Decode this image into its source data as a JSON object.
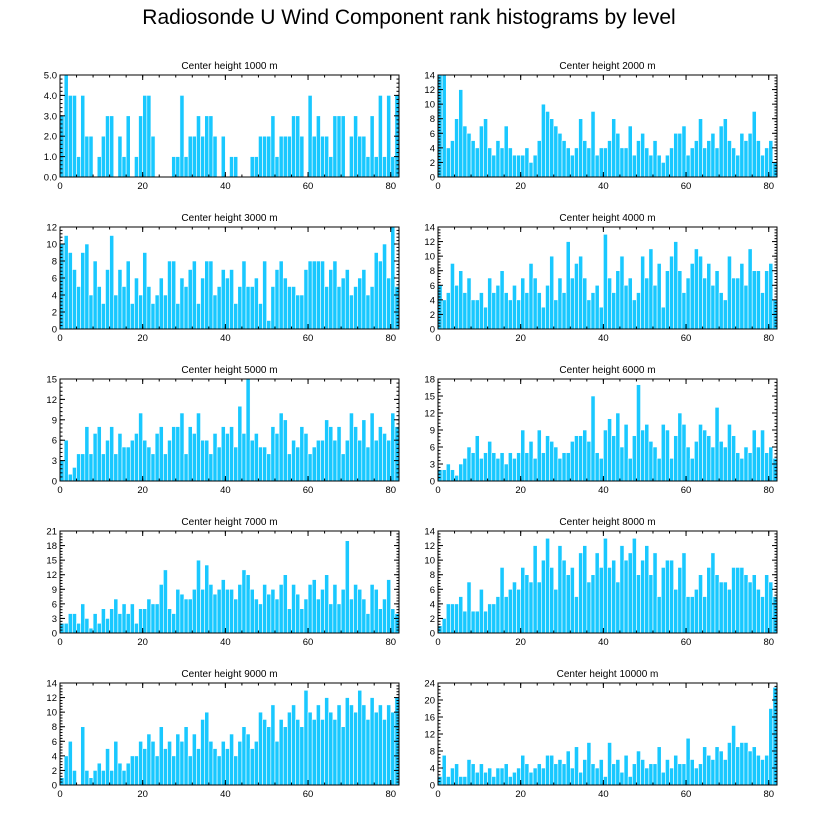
{
  "title": "Radiosonde U Wind Component rank histograms by level",
  "colors": {
    "bar": "#19c8ff",
    "axes": "#000000"
  },
  "chart_data": [
    {
      "type": "bar",
      "title": "Center height 1000 m",
      "xlim": [
        0,
        82
      ],
      "ylim": [
        0,
        5
      ],
      "xticks": [
        0,
        20,
        40,
        60,
        80
      ],
      "yticks": [
        0,
        1,
        2,
        3,
        4,
        5
      ],
      "ytick_labels": [
        "0.0",
        "1.0",
        "2.0",
        "3.0",
        "4.0",
        "5.0"
      ],
      "values": [
        3,
        5,
        4,
        4,
        1,
        4,
        2,
        2,
        0,
        1,
        2,
        3,
        3,
        0,
        2,
        1,
        3,
        0,
        1,
        3,
        4,
        4,
        2,
        0,
        0,
        0,
        0,
        1,
        1,
        4,
        1,
        2,
        2,
        3,
        2,
        3,
        3,
        2,
        0,
        2,
        0,
        1,
        1,
        0,
        0,
        0,
        1,
        1,
        2,
        2,
        2,
        3,
        1,
        2,
        2,
        2,
        3,
        3,
        2,
        0,
        4,
        2,
        3,
        2,
        2,
        1,
        3,
        3,
        3,
        0,
        2,
        3,
        2,
        2,
        1,
        3,
        1,
        4,
        1,
        4,
        1,
        4
      ]
    },
    {
      "type": "bar",
      "title": "Center height 2000 m",
      "xlim": [
        0,
        82
      ],
      "ylim": [
        0,
        14
      ],
      "xticks": [
        0,
        20,
        40,
        60,
        80
      ],
      "yticks": [
        0,
        2,
        4,
        6,
        8,
        10,
        12,
        14
      ],
      "ytick_labels": [
        "0",
        "2",
        "4",
        "6",
        "8",
        "10",
        "12",
        "14"
      ],
      "values": [
        14,
        14,
        4,
        5,
        8,
        12,
        7,
        6,
        5,
        4,
        7,
        8,
        4,
        3,
        5,
        4,
        7,
        4,
        3,
        3,
        3,
        4,
        2,
        3,
        5,
        10,
        9,
        8,
        7,
        6,
        5,
        4,
        3,
        4,
        8,
        5,
        4,
        9,
        3,
        4,
        4,
        5,
        8,
        6,
        4,
        4,
        7,
        3,
        5,
        6,
        4,
        3,
        5,
        3,
        2,
        3,
        4,
        6,
        6,
        7,
        3,
        4,
        5,
        8,
        4,
        5,
        6,
        4,
        7,
        8,
        5,
        4,
        3,
        6,
        5,
        6,
        9,
        5,
        3,
        4,
        5,
        2
      ]
    },
    {
      "type": "bar",
      "title": "Center height 3000 m",
      "xlim": [
        0,
        82
      ],
      "ylim": [
        0,
        12
      ],
      "xticks": [
        0,
        20,
        40,
        60,
        80
      ],
      "yticks": [
        0,
        2,
        4,
        6,
        8,
        10,
        12
      ],
      "ytick_labels": [
        "0",
        "2",
        "4",
        "6",
        "8",
        "10",
        "12"
      ],
      "values": [
        10,
        11,
        9,
        7,
        5,
        9,
        10,
        4,
        8,
        5,
        3,
        7,
        11,
        4,
        7,
        5,
        8,
        3,
        6,
        4,
        9,
        5,
        3,
        4,
        6,
        4,
        8,
        8,
        3,
        6,
        5,
        7,
        8,
        3,
        6,
        8,
        8,
        4,
        5,
        7,
        6,
        7,
        3,
        5,
        8,
        5,
        5,
        6,
        3,
        8,
        1,
        5,
        7,
        8,
        6,
        5,
        5,
        4,
        4,
        7,
        8,
        8,
        8,
        8,
        5,
        7,
        8,
        5,
        6,
        7,
        4,
        5,
        6,
        7,
        4,
        5,
        9,
        8,
        10,
        6,
        12,
        5
      ]
    },
    {
      "type": "bar",
      "title": "Center height 4000 m",
      "xlim": [
        0,
        82
      ],
      "ylim": [
        0,
        14
      ],
      "xticks": [
        0,
        20,
        40,
        60,
        80
      ],
      "yticks": [
        0,
        2,
        4,
        6,
        8,
        10,
        12,
        14
      ],
      "ytick_labels": [
        "0",
        "2",
        "4",
        "6",
        "8",
        "10",
        "12",
        "14"
      ],
      "values": [
        6,
        4,
        5,
        9,
        6,
        8,
        5,
        7,
        4,
        4,
        5,
        3,
        7,
        5,
        6,
        8,
        5,
        4,
        6,
        4,
        7,
        5,
        9,
        7,
        5,
        3,
        6,
        10,
        4,
        7,
        5,
        12,
        7,
        9,
        10,
        7,
        4,
        5,
        6,
        3,
        13,
        7,
        5,
        8,
        10,
        6,
        7,
        4,
        5,
        10,
        7,
        11,
        6,
        9,
        3,
        8,
        10,
        12,
        8,
        5,
        7,
        9,
        11,
        10,
        7,
        9,
        6,
        8,
        5,
        4,
        10,
        7,
        7,
        9,
        6,
        11,
        8,
        8,
        5,
        8,
        9,
        4
      ]
    },
    {
      "type": "bar",
      "title": "Center height 5000 m",
      "xlim": [
        0,
        82
      ],
      "ylim": [
        0,
        15
      ],
      "xticks": [
        0,
        20,
        40,
        60,
        80
      ],
      "yticks": [
        0,
        3,
        6,
        9,
        12,
        15
      ],
      "ytick_labels": [
        "0",
        "3",
        "6",
        "9",
        "12",
        "15"
      ],
      "values": [
        3,
        6,
        1,
        2,
        4,
        4,
        8,
        4,
        7,
        8,
        4,
        6,
        8,
        4,
        7,
        5,
        5,
        6,
        7,
        10,
        6,
        5,
        4,
        7,
        8,
        4,
        6,
        8,
        8,
        10,
        4,
        8,
        7,
        10,
        6,
        6,
        4,
        7,
        5,
        8,
        7,
        8,
        5,
        11,
        7,
        15,
        6,
        7,
        5,
        5,
        4,
        8,
        7,
        10,
        9,
        4,
        6,
        5,
        8,
        7,
        4,
        5,
        6,
        6,
        9,
        8,
        6,
        8,
        4,
        6,
        10,
        8,
        6,
        9,
        5,
        10,
        6,
        8,
        7,
        6,
        10,
        8
      ]
    },
    {
      "type": "bar",
      "title": "Center height 6000 m",
      "xlim": [
        0,
        82
      ],
      "ylim": [
        0,
        18
      ],
      "xticks": [
        0,
        20,
        40,
        60,
        80
      ],
      "yticks": [
        0,
        3,
        6,
        9,
        12,
        15,
        18
      ],
      "ytick_labels": [
        "0",
        "3",
        "6",
        "9",
        "12",
        "15",
        "18"
      ],
      "values": [
        2,
        2,
        3,
        2,
        1,
        3,
        4,
        6,
        5,
        8,
        4,
        5,
        7,
        5,
        4,
        5,
        3,
        5,
        4,
        5,
        9,
        5,
        7,
        4,
        9,
        5,
        8,
        7,
        6,
        4,
        5,
        5,
        7,
        8,
        8,
        9,
        7,
        15,
        5,
        4,
        9,
        11,
        8,
        12,
        6,
        10,
        4,
        8,
        17,
        9,
        10,
        7,
        6,
        4,
        10,
        9,
        4,
        8,
        12,
        10,
        6,
        4,
        7,
        10,
        9,
        8,
        6,
        13,
        7,
        6,
        10,
        8,
        5,
        4,
        6,
        5,
        9,
        6,
        9,
        5,
        6,
        4
      ]
    },
    {
      "type": "bar",
      "title": "Center height 7000 m",
      "xlim": [
        0,
        82
      ],
      "ylim": [
        0,
        21
      ],
      "xticks": [
        0,
        20,
        40,
        60,
        80
      ],
      "yticks": [
        0,
        3,
        6,
        9,
        12,
        15,
        18,
        21
      ],
      "ytick_labels": [
        "0",
        "3",
        "6",
        "9",
        "12",
        "15",
        "18",
        "21"
      ],
      "values": [
        2,
        2,
        4,
        4,
        2,
        6,
        3,
        1,
        4,
        2,
        5,
        3,
        5,
        7,
        4,
        6,
        4,
        6,
        2,
        5,
        5,
        7,
        6,
        6,
        10,
        13,
        5,
        4,
        9,
        8,
        7,
        7,
        9,
        15,
        9,
        14,
        10,
        8,
        9,
        11,
        9,
        9,
        7,
        10,
        13,
        12,
        9,
        7,
        6,
        10,
        8,
        9,
        7,
        10,
        12,
        5,
        10,
        8,
        5,
        7,
        10,
        11,
        7,
        9,
        12,
        6,
        10,
        6,
        9,
        19,
        7,
        10,
        9,
        7,
        4,
        10,
        9,
        5,
        7,
        11,
        5,
        4
      ]
    },
    {
      "type": "bar",
      "title": "Center height 8000 m",
      "xlim": [
        0,
        82
      ],
      "ylim": [
        0,
        14
      ],
      "xticks": [
        0,
        20,
        40,
        60,
        80
      ],
      "yticks": [
        0,
        2,
        4,
        6,
        8,
        10,
        12,
        14
      ],
      "ytick_labels": [
        "0",
        "2",
        "4",
        "6",
        "8",
        "10",
        "12",
        "14"
      ],
      "values": [
        1,
        2,
        4,
        4,
        4,
        5,
        3,
        7,
        3,
        3,
        6,
        3,
        4,
        4,
        5,
        9,
        5,
        6,
        7,
        6,
        9,
        8,
        7,
        12,
        7,
        10,
        13,
        9,
        6,
        12,
        10,
        8,
        9,
        5,
        11,
        12,
        7,
        8,
        11,
        9,
        13,
        9,
        10,
        7,
        12,
        10,
        11,
        13,
        8,
        10,
        12,
        8,
        11,
        5,
        9,
        10,
        10,
        6,
        9,
        11,
        5,
        5,
        6,
        8,
        5,
        9,
        11,
        8,
        7,
        7,
        6,
        9,
        9,
        9,
        8,
        7,
        8,
        6,
        5,
        8,
        7,
        5
      ]
    },
    {
      "type": "bar",
      "title": "Center height 9000 m",
      "xlim": [
        0,
        82
      ],
      "ylim": [
        0,
        14
      ],
      "xticks": [
        0,
        20,
        40,
        60,
        80
      ],
      "yticks": [
        0,
        2,
        4,
        6,
        8,
        10,
        12,
        14
      ],
      "ytick_labels": [
        "0",
        "2",
        "4",
        "6",
        "8",
        "10",
        "12",
        "14"
      ],
      "values": [
        1,
        4,
        6,
        2,
        0,
        8,
        2,
        1,
        2,
        3,
        2,
        5,
        2,
        6,
        3,
        2,
        3,
        4,
        4,
        6,
        5,
        7,
        6,
        4,
        8,
        5,
        6,
        4,
        7,
        6,
        8,
        4,
        7,
        5,
        9,
        10,
        6,
        5,
        4,
        6,
        5,
        7,
        4,
        6,
        8,
        7,
        5,
        6,
        10,
        9,
        8,
        11,
        6,
        9,
        8,
        10,
        11,
        9,
        8,
        13,
        10,
        9,
        11,
        9,
        12,
        10,
        9,
        11,
        8,
        12,
        11,
        10,
        13,
        11,
        9,
        12,
        10,
        11,
        9,
        11,
        10,
        12
      ]
    },
    {
      "type": "bar",
      "title": "Center height 10000 m",
      "xlim": [
        0,
        82
      ],
      "ylim": [
        0,
        24
      ],
      "xticks": [
        0,
        20,
        40,
        60,
        80
      ],
      "yticks": [
        0,
        4,
        8,
        12,
        16,
        20,
        24
      ],
      "ytick_labels": [
        "0",
        "4",
        "8",
        "12",
        "16",
        "20",
        "24"
      ],
      "values": [
        2,
        7,
        2,
        4,
        5,
        2,
        2,
        6,
        5,
        3,
        5,
        3,
        4,
        2,
        4,
        4,
        5,
        2,
        3,
        4,
        7,
        5,
        3,
        4,
        5,
        4,
        7,
        7,
        5,
        6,
        5,
        8,
        4,
        9,
        3,
        6,
        10,
        5,
        4,
        6,
        2,
        10,
        5,
        6,
        3,
        7,
        2,
        5,
        8,
        6,
        4,
        5,
        5,
        9,
        3,
        6,
        4,
        7,
        5,
        5,
        11,
        6,
        4,
        5,
        9,
        7,
        6,
        9,
        8,
        6,
        10,
        14,
        9,
        10,
        10,
        8,
        9,
        7,
        6,
        7,
        18,
        23
      ]
    }
  ]
}
